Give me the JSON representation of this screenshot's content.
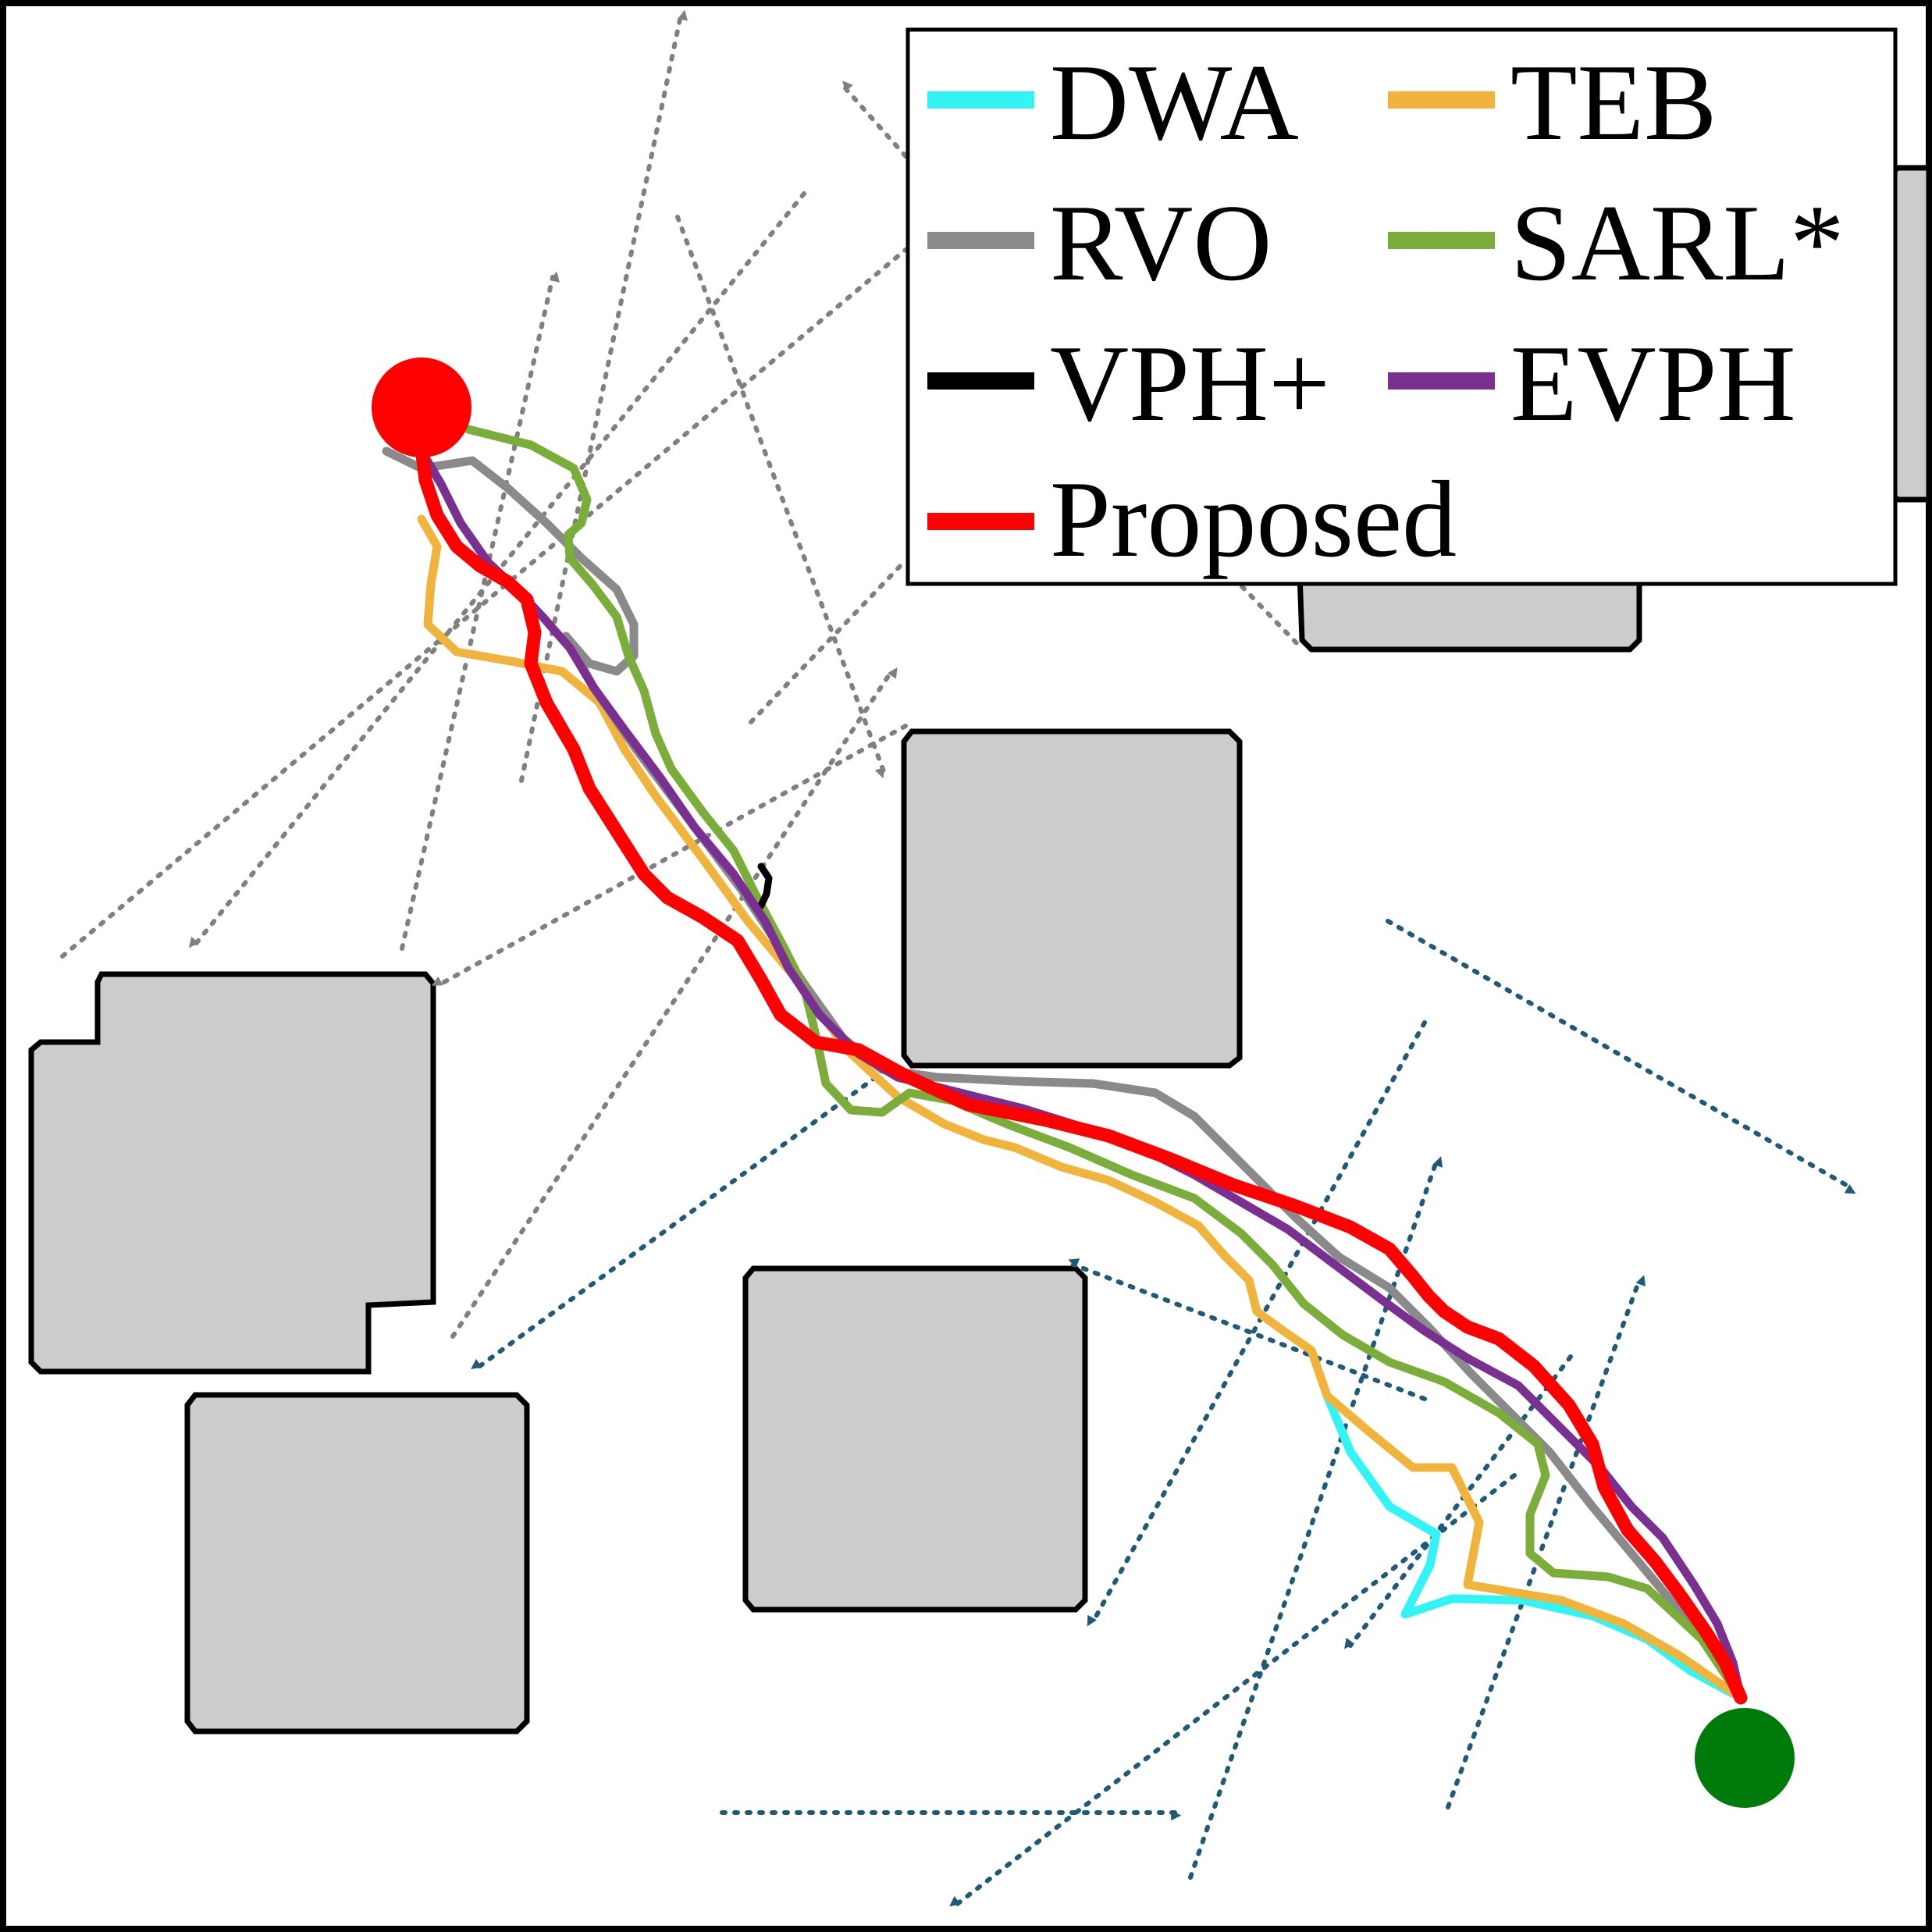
{
  "legend": {
    "entries": [
      {
        "label": "DWA",
        "color": "#33f4f4"
      },
      {
        "label": "TEB",
        "color": "#f0b43c"
      },
      {
        "label": "RVO",
        "color": "#8a8a8a"
      },
      {
        "label": "SARL*",
        "color": "#7aad3a"
      },
      {
        "label": "VPH+",
        "color": "#000000"
      },
      {
        "label": "EVPH",
        "color": "#7a3090"
      },
      {
        "label": "Proposed",
        "color": "#ff0000"
      }
    ]
  },
  "markers": {
    "start_color": "#ff0000",
    "goal_color": "#007a0a"
  },
  "colors": {
    "obstacle_fill": "#cccccc",
    "gray_pedestrian_arrows": "#808080",
    "blue_pedestrian_arrows": "#1f5a78"
  }
}
